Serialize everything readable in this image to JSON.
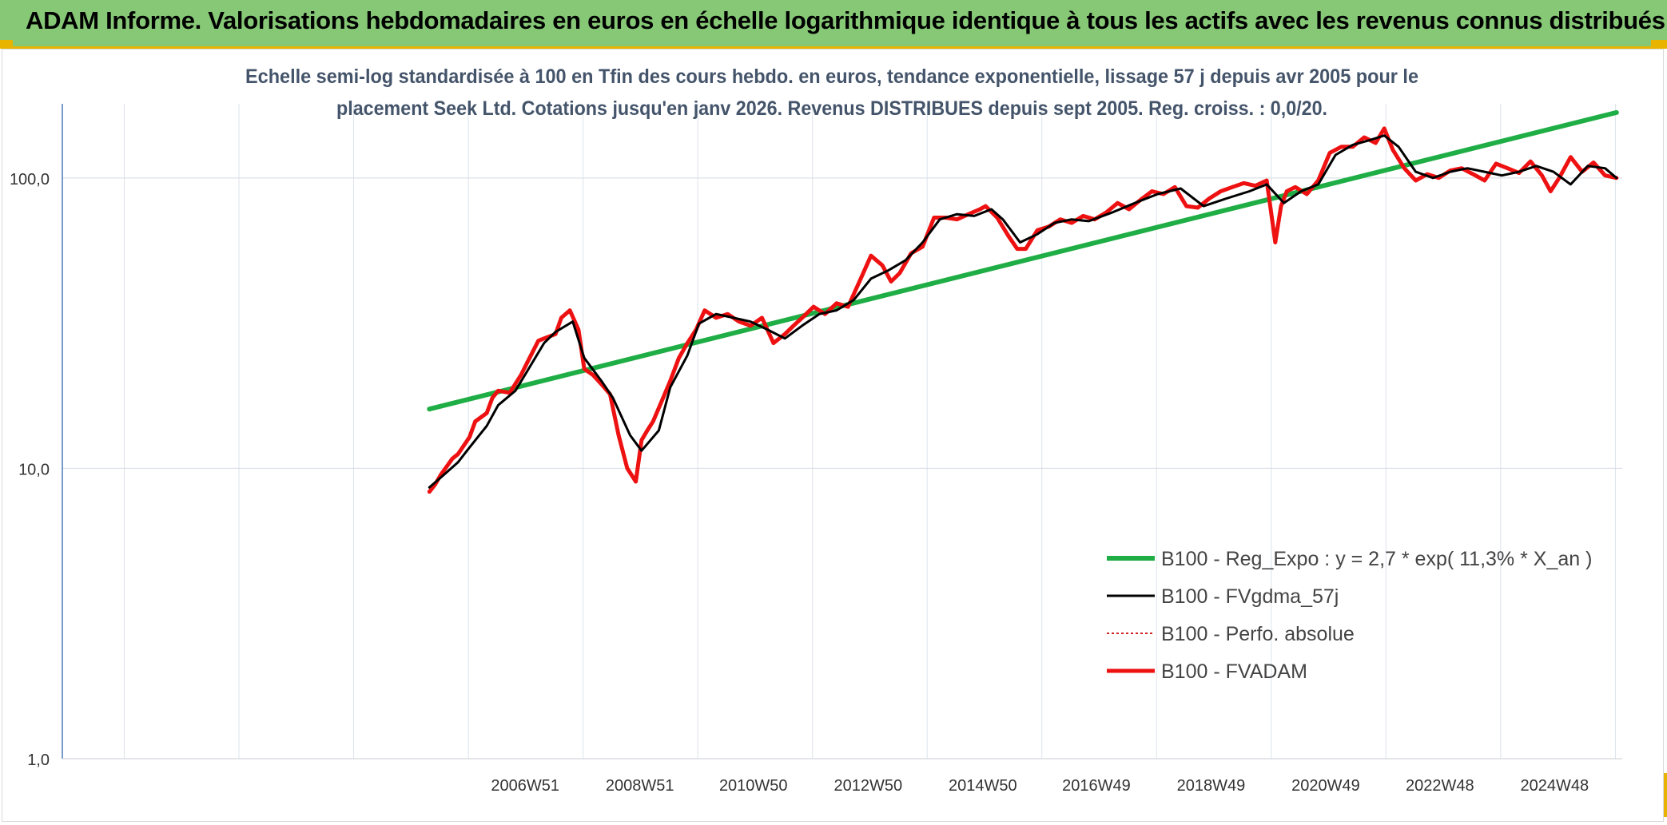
{
  "banner": {
    "title": "ADAM Informe. Valorisations hebdomadaires en euros en échelle logarithmique identique à tous les actifs avec les revenus connus distribués"
  },
  "colors": {
    "banner_bg": "#86c876",
    "accent_corner": "#e8b400",
    "regression": "#1fae45",
    "smoothed": "#000000",
    "fvadam": "#ee1111",
    "perfo": "#cc2222"
  },
  "chart_data": {
    "type": "line",
    "y_scale": "log",
    "ylim": [
      1,
      180
    ],
    "y_ticks": [
      {
        "value": 1,
        "label": "1,0"
      },
      {
        "value": 10,
        "label": "10,0"
      },
      {
        "value": 100,
        "label": "100,0"
      }
    ],
    "x_range": [
      1998.9,
      2026.1
    ],
    "x_ticks": [
      {
        "value": 2006.97,
        "label": "2006W51"
      },
      {
        "value": 2008.97,
        "label": "2008W51"
      },
      {
        "value": 2010.95,
        "label": "2010W50"
      },
      {
        "value": 2012.95,
        "label": "2012W50"
      },
      {
        "value": 2014.95,
        "label": "2014W50"
      },
      {
        "value": 2016.93,
        "label": "2016W49"
      },
      {
        "value": 2018.93,
        "label": "2018W49"
      },
      {
        "value": 2020.93,
        "label": "2020W49"
      },
      {
        "value": 2022.92,
        "label": "2022W48"
      },
      {
        "value": 2024.92,
        "label": "2024W48"
      }
    ],
    "gridlines": true,
    "title": "Echelle semi-log standardisée à 100 en Tfin des cours hebdo. en euros, tendance exponentielle, lissage 57 j depuis avr 2005 pour le placement Seek Ltd. Cotations jusqu'en janv 2026. Revenus DISTRIBUES depuis sept 2005. Reg. croiss. : 0,0/20.",
    "title_lines": [
      "Echelle semi-log standardisée à 100 en Tfin des cours hebdo. en euros, tendance exponentielle, lissage 57 j depuis avr 2005 pour le",
      "placement Seek Ltd. Cotations jusqu'en janv 2026. Revenus DISTRIBUES depuis sept 2005. Reg. croiss. : 0,0/20."
    ],
    "legend_position": "lower-right",
    "series": [
      {
        "name": "B100 - Reg_Expo : y = 2,7 * exp( 11,3% *  X_an )",
        "style": "regression",
        "x": [
          2005.3,
          2026.0
        ],
        "values": [
          16.0,
          168.0
        ]
      },
      {
        "name": "B100 - FVgdma_57j",
        "style": "smoothed",
        "x": [
          2005.3,
          2005.5,
          2005.8,
          2006.0,
          2006.3,
          2006.5,
          2006.8,
          2007.0,
          2007.3,
          2007.5,
          2007.8,
          2008.0,
          2008.3,
          2008.5,
          2008.8,
          2009.0,
          2009.3,
          2009.5,
          2009.8,
          2010.0,
          2010.3,
          2010.6,
          2010.9,
          2011.2,
          2011.5,
          2011.8,
          2012.1,
          2012.4,
          2012.7,
          2013.0,
          2013.3,
          2013.6,
          2013.9,
          2014.2,
          2014.5,
          2014.8,
          2015.1,
          2015.3,
          2015.6,
          2015.9,
          2016.2,
          2016.5,
          2016.8,
          2017.2,
          2017.6,
          2018.0,
          2018.4,
          2018.8,
          2019.2,
          2019.6,
          2019.9,
          2020.2,
          2020.5,
          2020.8,
          2021.1,
          2021.4,
          2021.7,
          2021.95,
          2022.2,
          2022.5,
          2022.8,
          2023.1,
          2023.4,
          2023.7,
          2024.0,
          2024.3,
          2024.6,
          2024.9,
          2025.2,
          2025.5,
          2025.8,
          2026.0
        ],
        "values": [
          8.6,
          9.3,
          10.5,
          11.8,
          14.0,
          16.5,
          18.5,
          21.5,
          27.0,
          29.5,
          32.0,
          24.0,
          20.0,
          17.5,
          13.0,
          11.5,
          13.5,
          19.0,
          24.5,
          31.5,
          34.0,
          33.0,
          32.0,
          30.0,
          28.0,
          31.0,
          34.0,
          35.0,
          38.0,
          45.0,
          48.0,
          52.0,
          60.0,
          72.0,
          75.0,
          74.0,
          78.0,
          72.0,
          60.0,
          64.0,
          70.0,
          72.0,
          71.0,
          76.0,
          82.0,
          88.0,
          92.0,
          80.0,
          85.0,
          90.0,
          95.0,
          82.0,
          90.0,
          95.0,
          120.0,
          130.0,
          135.0,
          140.0,
          128.0,
          105.0,
          100.0,
          105.0,
          108.0,
          105.0,
          102.0,
          105.0,
          110.0,
          105.0,
          95.0,
          110.0,
          108.0,
          100.0
        ]
      },
      {
        "name": "B100 - Perfo. absolue",
        "style": "perfo",
        "x": [],
        "values": []
      },
      {
        "name": "B100 - FVADAM",
        "style": "fvadam",
        "x": [
          2005.3,
          2005.4,
          2005.5,
          2005.7,
          2005.8,
          2006.0,
          2006.1,
          2006.3,
          2006.4,
          2006.5,
          2006.7,
          2006.9,
          2007.0,
          2007.2,
          2007.3,
          2007.5,
          2007.6,
          2007.75,
          2007.9,
          2008.0,
          2008.15,
          2008.3,
          2008.45,
          2008.6,
          2008.75,
          2008.9,
          2009.0,
          2009.1,
          2009.2,
          2009.35,
          2009.5,
          2009.65,
          2009.8,
          2009.95,
          2010.1,
          2010.3,
          2010.5,
          2010.7,
          2010.9,
          2011.1,
          2011.3,
          2011.5,
          2011.65,
          2011.8,
          2012.0,
          2012.2,
          2012.4,
          2012.6,
          2012.8,
          2013.0,
          2013.2,
          2013.35,
          2013.5,
          2013.7,
          2013.9,
          2014.1,
          2014.3,
          2014.5,
          2014.7,
          2014.9,
          2015.0,
          2015.2,
          2015.4,
          2015.55,
          2015.7,
          2015.9,
          2016.1,
          2016.3,
          2016.5,
          2016.7,
          2016.9,
          2017.1,
          2017.3,
          2017.5,
          2017.7,
          2017.9,
          2018.1,
          2018.3,
          2018.5,
          2018.7,
          2018.9,
          2019.1,
          2019.3,
          2019.5,
          2019.7,
          2019.9,
          2020.05,
          2020.15,
          2020.25,
          2020.4,
          2020.6,
          2020.8,
          2021.0,
          2021.2,
          2021.4,
          2021.6,
          2021.8,
          2021.95,
          2022.1,
          2022.3,
          2022.5,
          2022.7,
          2022.9,
          2023.1,
          2023.3,
          2023.5,
          2023.7,
          2023.9,
          2024.1,
          2024.3,
          2024.5,
          2024.7,
          2024.85,
          2025.0,
          2025.2,
          2025.4,
          2025.6,
          2025.8,
          2026.0
        ],
        "values": [
          8.3,
          8.8,
          9.5,
          10.8,
          11.2,
          12.8,
          14.5,
          15.5,
          17.5,
          18.5,
          18.2,
          21.0,
          23.0,
          27.5,
          28.0,
          29.0,
          33.0,
          35.0,
          30.0,
          22.0,
          21.0,
          19.5,
          18.0,
          13.0,
          10.0,
          9.0,
          12.5,
          13.5,
          14.5,
          17.0,
          20.0,
          24.0,
          27.0,
          30.0,
          35.0,
          33.0,
          34.0,
          32.0,
          31.0,
          33.0,
          27.0,
          29.0,
          31.0,
          33.0,
          36.0,
          34.0,
          37.0,
          36.0,
          44.0,
          54.0,
          50.0,
          44.0,
          47.0,
          55.0,
          58.0,
          73.0,
          73.0,
          72.0,
          75.0,
          78.0,
          80.0,
          73.0,
          63.0,
          57.0,
          57.0,
          66.0,
          68.0,
          72.0,
          70.0,
          74.0,
          72.0,
          76.0,
          82.0,
          78.0,
          84.0,
          90.0,
          88.0,
          93.0,
          80.0,
          79.0,
          85.0,
          90.0,
          93.0,
          96.0,
          94.0,
          98.0,
          60.0,
          80.0,
          90.0,
          93.0,
          88.0,
          98.0,
          122.0,
          128.0,
          128.0,
          138.0,
          132.0,
          148.0,
          125.0,
          108.0,
          98.0,
          103.0,
          100.0,
          106.0,
          108.0,
          103.0,
          98.0,
          112.0,
          108.0,
          104.0,
          114.0,
          102.0,
          90.0,
          100.0,
          118.0,
          105.0,
          113.0,
          102.0,
          100.0
        ]
      }
    ]
  }
}
